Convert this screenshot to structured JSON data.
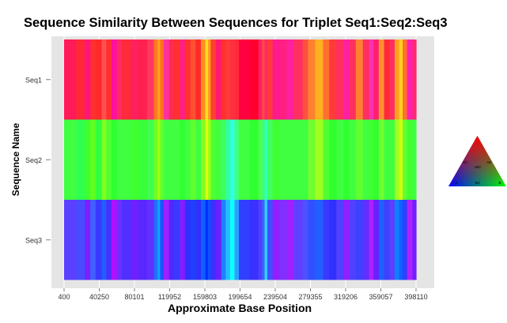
{
  "chart_data": {
    "type": "heatmap",
    "title": "Sequence Similarity Between Sequences for Triplet Seq1:Seq2:Seq3",
    "xlabel": "Approximate Base Position",
    "ylabel": "Sequence Name",
    "xlim": [
      400,
      398110
    ],
    "x_ticks": [
      "400",
      "40250",
      "80101",
      "119952",
      "159803",
      "199654",
      "239504",
      "279355",
      "319206",
      "359057",
      "398110"
    ],
    "rows": [
      "Seq1",
      "Seq2",
      "Seq3"
    ],
    "grid": true,
    "color_key": {
      "position": "right",
      "labels": [
        "AC",
        "AB",
        "ABC",
        "BC",
        "A",
        "B"
      ],
      "corner_colors": {
        "top": "#ff0000",
        "left": "#0000ff",
        "right": "#00ff00"
      }
    },
    "stripes": [
      {
        "x": 400,
        "colors": [
          "#ff1a5a",
          "#40ff40",
          "#5a40ff"
        ]
      },
      {
        "x": 14000,
        "colors": [
          "#ff2838",
          "#30ff50",
          "#4a4aff"
        ]
      },
      {
        "x": 24000,
        "colors": [
          "#ff1480",
          "#40ff30",
          "#7a20ff"
        ]
      },
      {
        "x": 30000,
        "colors": [
          "#ff3030",
          "#60ff20",
          "#4060ff"
        ]
      },
      {
        "x": 36000,
        "colors": [
          "#ff2a2a",
          "#30ff40",
          "#3a3aff"
        ]
      },
      {
        "x": 43000,
        "colors": [
          "#ff5050",
          "#80ff20",
          "#2060ff"
        ]
      },
      {
        "x": 48000,
        "colors": [
          "#ff3030",
          "#50ff30",
          "#4a30ff"
        ]
      },
      {
        "x": 54000,
        "colors": [
          "#ff10a0",
          "#30ff30",
          "#b010ff"
        ]
      },
      {
        "x": 60000,
        "colors": [
          "#ff2a60",
          "#40ff40",
          "#6a30ff"
        ]
      },
      {
        "x": 66000,
        "colors": [
          "#ff2a3a",
          "#40ff40",
          "#5030ff"
        ]
      },
      {
        "x": 76000,
        "colors": [
          "#ff2060",
          "#40ff30",
          "#7020ff"
        ]
      },
      {
        "x": 84000,
        "colors": [
          "#ff2050",
          "#38ff38",
          "#5a28ff"
        ]
      },
      {
        "x": 94000,
        "colors": [
          "#ff3860",
          "#40ff50",
          "#6030ff"
        ]
      },
      {
        "x": 102000,
        "colors": [
          "#ff7a20",
          "#70ff20",
          "#2070ff"
        ]
      },
      {
        "x": 106000,
        "colors": [
          "#ffa020",
          "#a0ff10",
          "#10a0ff"
        ]
      },
      {
        "x": 109000,
        "colors": [
          "#ff7020",
          "#60ff30",
          "#2050ff"
        ]
      },
      {
        "x": 113000,
        "colors": [
          "#ff30a0",
          "#40ff40",
          "#a020ff"
        ]
      },
      {
        "x": 119000,
        "colors": [
          "#ff2a50",
          "#40ff40",
          "#5028ff"
        ]
      },
      {
        "x": 124000,
        "colors": [
          "#ff3030",
          "#40ff40",
          "#3a3aff"
        ]
      },
      {
        "x": 131000,
        "colors": [
          "#ff2080",
          "#30ff30",
          "#8020ff"
        ]
      },
      {
        "x": 137000,
        "colors": [
          "#ff3030",
          "#40ff40",
          "#3030ff"
        ]
      },
      {
        "x": 143000,
        "colors": [
          "#ff5030",
          "#60ff30",
          "#2040ff"
        ]
      },
      {
        "x": 149000,
        "colors": [
          "#ff2a2a",
          "#40ff40",
          "#3030ff"
        ]
      },
      {
        "x": 155000,
        "colors": [
          "#ff9020",
          "#80ff20",
          "#1060ff"
        ]
      },
      {
        "x": 160000,
        "colors": [
          "#ffe020",
          "#e0ff10",
          "#0030ff"
        ]
      },
      {
        "x": 163000,
        "colors": [
          "#ffa020",
          "#a0ff10",
          "#1050ff"
        ]
      },
      {
        "x": 166000,
        "colors": [
          "#ff4030",
          "#50ff30",
          "#3a30ff"
        ]
      },
      {
        "x": 172000,
        "colors": [
          "#ff1a70",
          "#40ff40",
          "#6a20ff"
        ]
      },
      {
        "x": 178000,
        "colors": [
          "#ff3030",
          "#40ff60",
          "#2080ff"
        ]
      },
      {
        "x": 183000,
        "colors": [
          "#ff3a3a",
          "#30ffa0",
          "#20c0ff"
        ]
      },
      {
        "x": 188000,
        "colors": [
          "#ff3040",
          "#30ffe0",
          "#10ffff"
        ]
      },
      {
        "x": 193000,
        "colors": [
          "#ff2a3a",
          "#40ff80",
          "#30a0ff"
        ]
      },
      {
        "x": 198000,
        "colors": [
          "#ff0040",
          "#40ff40",
          "#3040ff"
        ]
      },
      {
        "x": 210000,
        "colors": [
          "#ff0030",
          "#30ff30",
          "#3a30ff"
        ]
      },
      {
        "x": 220000,
        "colors": [
          "#ff2060",
          "#50ff50",
          "#5040ff"
        ]
      },
      {
        "x": 224000,
        "colors": [
          "#ff4a4a",
          "#40ff70",
          "#4060ff"
        ]
      },
      {
        "x": 227000,
        "colors": [
          "#ff2a60",
          "#30ffc0",
          "#30d0ff"
        ]
      },
      {
        "x": 230000,
        "colors": [
          "#ff3a3a",
          "#40ff60",
          "#4050ff"
        ]
      },
      {
        "x": 236000,
        "colors": [
          "#ff1a90",
          "#40ff30",
          "#9020ff"
        ]
      },
      {
        "x": 244000,
        "colors": [
          "#ff2080",
          "#40ff40",
          "#8030ff"
        ]
      },
      {
        "x": 252000,
        "colors": [
          "#ff20a0",
          "#40ff40",
          "#a020ff"
        ]
      },
      {
        "x": 260000,
        "colors": [
          "#ff3060",
          "#40ff40",
          "#6040ff"
        ]
      },
      {
        "x": 270000,
        "colors": [
          "#ff5040",
          "#40ff40",
          "#5050ff"
        ]
      },
      {
        "x": 276000,
        "colors": [
          "#ff8030",
          "#70ff30",
          "#3050ff"
        ]
      },
      {
        "x": 284000,
        "colors": [
          "#ffb020",
          "#a0ff20",
          "#2060ff"
        ]
      },
      {
        "x": 293000,
        "colors": [
          "#ff7030",
          "#50ff30",
          "#3a3aff"
        ]
      },
      {
        "x": 300000,
        "colors": [
          "#ff3a3a",
          "#30ff30",
          "#3030ff"
        ]
      },
      {
        "x": 308000,
        "colors": [
          "#ff3060",
          "#40ff40",
          "#5040ff"
        ]
      },
      {
        "x": 316000,
        "colors": [
          "#ff20a0",
          "#30ff30",
          "#9020ff"
        ]
      },
      {
        "x": 323000,
        "colors": [
          "#ff3060",
          "#40ff40",
          "#5040ff"
        ]
      },
      {
        "x": 330000,
        "colors": [
          "#ff8030",
          "#60ff30",
          "#4040ff"
        ]
      },
      {
        "x": 338000,
        "colors": [
          "#ff3060",
          "#40ff40",
          "#6030ff"
        ]
      },
      {
        "x": 345000,
        "colors": [
          "#ff30b0",
          "#40ff30",
          "#b020ff"
        ]
      },
      {
        "x": 350000,
        "colors": [
          "#ff2070",
          "#30ff30",
          "#6a20ff"
        ]
      },
      {
        "x": 356000,
        "colors": [
          "#ff9030",
          "#70ff30",
          "#2060ff"
        ]
      },
      {
        "x": 362000,
        "colors": [
          "#ff2a3a",
          "#40ff40",
          "#4040ff"
        ]
      },
      {
        "x": 368000,
        "colors": [
          "#ff3060",
          "#40ff40",
          "#5a40ff"
        ]
      },
      {
        "x": 374000,
        "colors": [
          "#ffa020",
          "#a0ff20",
          "#1080ff"
        ]
      },
      {
        "x": 379000,
        "colors": [
          "#ffd020",
          "#d0ff10",
          "#1060ff"
        ]
      },
      {
        "x": 383000,
        "colors": [
          "#ff7030",
          "#60ff30",
          "#3040ff"
        ]
      },
      {
        "x": 388000,
        "colors": [
          "#ff20b0",
          "#40ff30",
          "#b020ff"
        ]
      },
      {
        "x": 394000,
        "colors": [
          "#ff2a70",
          "#40ff40",
          "#7020ff"
        ]
      }
    ]
  }
}
